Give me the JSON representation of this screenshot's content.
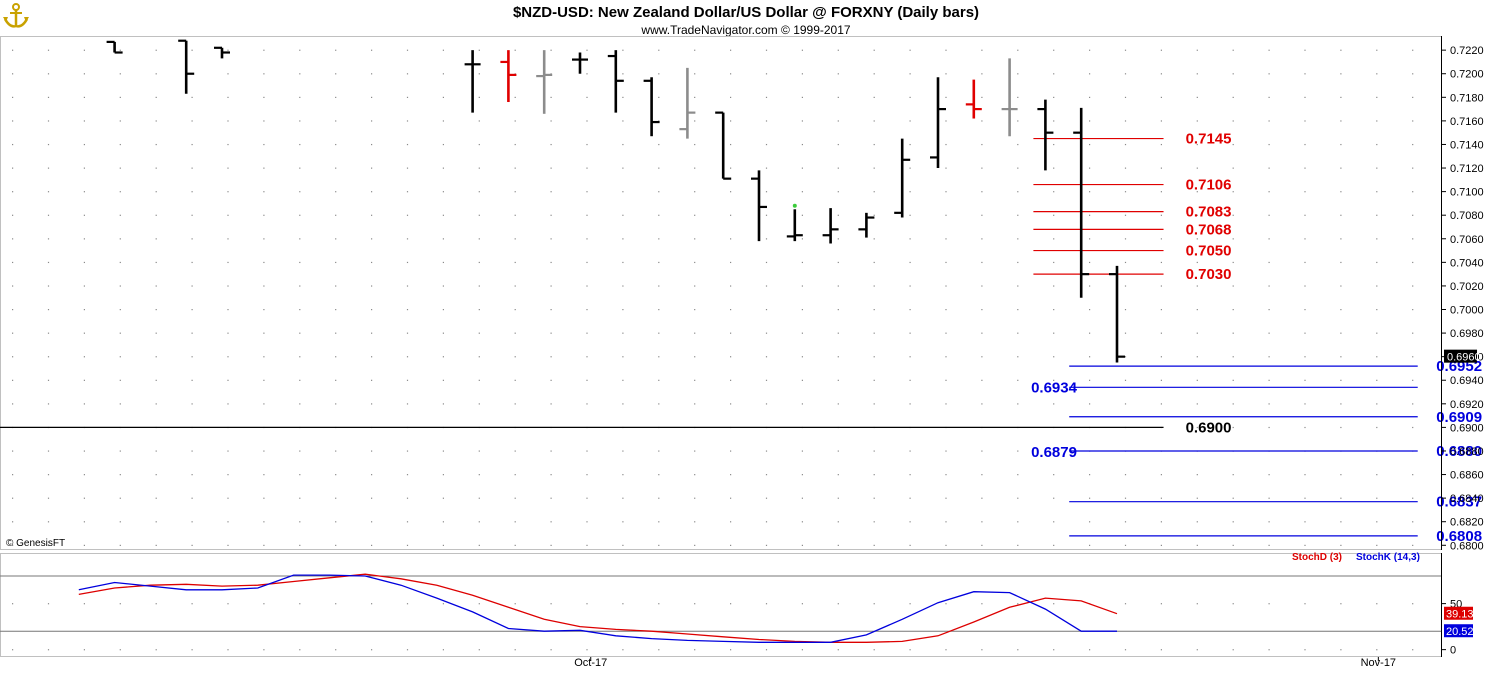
{
  "header": {
    "title": "$NZD-USD:  New Zealand Dollar/US Dollar @ FORXNY  (Daily bars)",
    "subtitle": "www.TradeNavigator.com © 1999-2017"
  },
  "watermark": "© GenesisFT",
  "logo_icon": "anchor-icon",
  "colors": {
    "bar_default": "#000000",
    "bar_red": "#e00000",
    "bar_gray": "#8c8c8c",
    "resistance": "#e00000",
    "support": "#0000dd",
    "neutral_level": "#000000",
    "stoch_d": "#dd0000",
    "stoch_k": "#0000dd",
    "last_price_bg": "#000000"
  },
  "chart_data": [
    {
      "type": "ohlc",
      "title": "$NZD-USD:  New Zealand Dollar/US Dollar @ FORXNY  (Daily bars)",
      "ylim": [
        0.6796,
        0.7232
      ],
      "y_ticks": [
        "0.7220",
        "0.7200",
        "0.7180",
        "0.7160",
        "0.7140",
        "0.7120",
        "0.7100",
        "0.7080",
        "0.7060",
        "0.7040",
        "0.7020",
        "0.7000",
        "0.6980",
        "0.6960",
        "0.6940",
        "0.6920",
        "0.6900",
        "0.6880",
        "0.6860",
        "0.6840",
        "0.6820",
        "0.6800"
      ],
      "x_labels": [
        {
          "label": "Oct-17",
          "index": 15.3
        },
        {
          "label": "Nov-17",
          "index": 37.3
        }
      ],
      "last_price": "0.6960",
      "bars": [
        {
          "i": 2,
          "o": 0.7227,
          "h": 0.7227,
          "l": 0.7218,
          "c": 0.7218,
          "color": "black"
        },
        {
          "i": 4,
          "o": 0.7228,
          "h": 0.7228,
          "l": 0.7183,
          "c": 0.72,
          "color": "black"
        },
        {
          "i": 5,
          "o": 0.7222,
          "h": 0.7222,
          "l": 0.7213,
          "c": 0.7218,
          "color": "black"
        },
        {
          "i": 12,
          "o": 0.7208,
          "h": 0.722,
          "l": 0.7167,
          "c": 0.7208,
          "color": "black"
        },
        {
          "i": 13,
          "o": 0.721,
          "h": 0.722,
          "l": 0.7176,
          "c": 0.7199,
          "color": "red"
        },
        {
          "i": 14,
          "o": 0.7198,
          "h": 0.722,
          "l": 0.7166,
          "c": 0.7199,
          "color": "gray"
        },
        {
          "i": 15,
          "o": 0.7212,
          "h": 0.7218,
          "l": 0.72,
          "c": 0.7212,
          "color": "black"
        },
        {
          "i": 16,
          "o": 0.7215,
          "h": 0.722,
          "l": 0.7167,
          "c": 0.7194,
          "color": "black"
        },
        {
          "i": 17,
          "o": 0.7194,
          "h": 0.7197,
          "l": 0.7147,
          "c": 0.7159,
          "color": "black"
        },
        {
          "i": 18,
          "o": 0.7153,
          "h": 0.7205,
          "l": 0.7145,
          "c": 0.7167,
          "color": "gray"
        },
        {
          "i": 19,
          "o": 0.7167,
          "h": 0.7167,
          "l": 0.7111,
          "c": 0.7111,
          "color": "black"
        },
        {
          "i": 20,
          "o": 0.7111,
          "h": 0.7118,
          "l": 0.7058,
          "c": 0.7087,
          "color": "black"
        },
        {
          "i": 21,
          "o": 0.7062,
          "h": 0.7085,
          "l": 0.7058,
          "c": 0.7063,
          "color": "black"
        },
        {
          "i": 22,
          "o": 0.7063,
          "h": 0.7086,
          "l": 0.7056,
          "c": 0.7068,
          "color": "black"
        },
        {
          "i": 23,
          "o": 0.7068,
          "h": 0.7082,
          "l": 0.7061,
          "c": 0.7078,
          "color": "black"
        },
        {
          "i": 24,
          "o": 0.7082,
          "h": 0.7145,
          "l": 0.7078,
          "c": 0.7127,
          "color": "black"
        },
        {
          "i": 25,
          "o": 0.7129,
          "h": 0.7197,
          "l": 0.712,
          "c": 0.717,
          "color": "black"
        },
        {
          "i": 26,
          "o": 0.7174,
          "h": 0.7195,
          "l": 0.7162,
          "c": 0.717,
          "color": "red"
        },
        {
          "i": 27,
          "o": 0.717,
          "h": 0.7213,
          "l": 0.7147,
          "c": 0.717,
          "color": "gray"
        },
        {
          "i": 28,
          "o": 0.717,
          "h": 0.7178,
          "l": 0.7118,
          "c": 0.715,
          "color": "black"
        },
        {
          "i": 29,
          "o": 0.715,
          "h": 0.7171,
          "l": 0.701,
          "c": 0.703,
          "color": "black"
        },
        {
          "i": 30,
          "o": 0.703,
          "h": 0.7037,
          "l": 0.6955,
          "c": 0.696,
          "color": "black"
        }
      ],
      "levels": [
        {
          "value": 0.7145,
          "label": "0.7145",
          "color": "red",
          "from_index": 28,
          "to_index": 31.3,
          "label_index": 32
        },
        {
          "value": 0.7106,
          "label": "0.7106",
          "color": "red",
          "from_index": 28,
          "to_index": 31.3,
          "label_index": 32
        },
        {
          "value": 0.7083,
          "label": "0.7083",
          "color": "red",
          "from_index": 28,
          "to_index": 31.3,
          "label_index": 32
        },
        {
          "value": 0.7068,
          "label": "0.7068",
          "color": "red",
          "from_index": 28,
          "to_index": 31.3,
          "label_index": 32
        },
        {
          "value": 0.705,
          "label": "0.7050",
          "color": "red",
          "from_index": 28,
          "to_index": 31.3,
          "label_index": 32
        },
        {
          "value": 0.703,
          "label": "0.7030",
          "color": "red",
          "from_index": 28,
          "to_index": 31.3,
          "label_index": 32
        },
        {
          "value": 0.6952,
          "label": "0.6952",
          "color": "blue",
          "from_index": 29,
          "to_index": 38.4,
          "label_index": 39,
          "label_side": "right"
        },
        {
          "value": 0.6934,
          "label": "0.6934",
          "color": "blue",
          "from_index": 29,
          "to_index": 38.4,
          "label_index": 27.6,
          "label_side": "left"
        },
        {
          "value": 0.6909,
          "label": "0.6909",
          "color": "blue",
          "from_index": 29,
          "to_index": 38.4,
          "label_index": 39,
          "label_side": "right"
        },
        {
          "value": 0.69,
          "label": "0.6900",
          "color": "black",
          "from_index": -1.5,
          "to_index": 31.3,
          "label_index": 32,
          "label_side": "right"
        },
        {
          "value": 0.688,
          "label": "0.6880",
          "color": "blue",
          "from_index": 29,
          "to_index": 38.4,
          "label_index": 39,
          "label_side": "right"
        },
        {
          "value": 0.6879,
          "label": "0.6879",
          "color": "blue",
          "from_index": 29,
          "to_index": 29,
          "label_index": 27.6,
          "label_side": "left"
        },
        {
          "value": 0.6837,
          "label": "0.6837",
          "color": "blue",
          "from_index": 29,
          "to_index": 38.4,
          "label_index": 39,
          "label_side": "right"
        },
        {
          "value": 0.6808,
          "label": "0.6808",
          "color": "blue",
          "from_index": 29,
          "to_index": 38.4,
          "label_index": 39,
          "label_side": "right"
        }
      ]
    },
    {
      "type": "line",
      "title": "",
      "ylim": [
        -8,
        105
      ],
      "y_ticks": [
        "50",
        "0"
      ],
      "reference_lines": [
        80,
        20
      ],
      "series": [
        {
          "name": "StochD (3)",
          "color": "red",
          "last_value": "39.13",
          "x": [
            1,
            2,
            3,
            4,
            5,
            6,
            7,
            8,
            9,
            10,
            11,
            12,
            13,
            14,
            15,
            16,
            17,
            18,
            19,
            20,
            21,
            22,
            23,
            24,
            25,
            26,
            27,
            28,
            29,
            30
          ],
          "values": [
            60,
            67,
            70,
            71,
            69,
            70,
            74,
            78,
            82,
            77,
            70,
            59,
            46,
            33,
            25,
            22,
            20,
            17,
            14,
            11,
            9,
            8,
            8,
            9,
            15,
            30,
            46,
            56,
            53,
            39
          ]
        },
        {
          "name": "StochK (14,3)",
          "color": "blue",
          "last_value": "20.52",
          "x": [
            1,
            2,
            3,
            4,
            5,
            6,
            7,
            8,
            9,
            10,
            11,
            12,
            13,
            14,
            15,
            16,
            17,
            18,
            19,
            20,
            21,
            22,
            23,
            24,
            25,
            26,
            27,
            28,
            29,
            30
          ],
          "values": [
            65,
            73,
            69,
            65,
            65,
            67,
            81,
            81,
            80,
            70,
            56,
            41,
            23,
            20,
            21,
            15,
            12,
            10,
            9,
            8,
            8,
            8,
            16,
            33,
            51,
            63,
            62,
            44,
            20,
            20
          ]
        }
      ]
    }
  ]
}
